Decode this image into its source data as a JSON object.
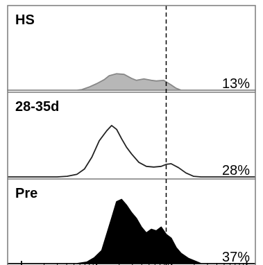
{
  "chart_data": {
    "type": "area",
    "layout": "stacked-histogram-overlay",
    "gate_line": "dashed",
    "x_range": [
      0,
      1
    ],
    "panels": [
      {
        "name": "HS",
        "label": "HS",
        "percent": "13%",
        "fill": "#b7b7b7",
        "stroke": "#888888",
        "x": [
          0.0,
          0.28,
          0.3,
          0.33,
          0.36,
          0.39,
          0.41,
          0.44,
          0.47,
          0.5,
          0.52,
          0.55,
          0.58,
          0.6,
          0.63,
          0.66,
          0.68,
          0.7,
          1.0
        ],
        "y": [
          0,
          0,
          0.01,
          0.05,
          0.1,
          0.16,
          0.22,
          0.25,
          0.24,
          0.18,
          0.15,
          0.17,
          0.15,
          0.14,
          0.15,
          0.08,
          0.03,
          0.0,
          0
        ]
      },
      {
        "name": "28-35d",
        "label": "28-35d",
        "percent": "28%",
        "fill": "none",
        "stroke": "#222222",
        "x": [
          0.0,
          0.2,
          0.24,
          0.28,
          0.31,
          0.34,
          0.37,
          0.4,
          0.42,
          0.44,
          0.46,
          0.48,
          0.5,
          0.53,
          0.56,
          0.59,
          0.62,
          0.64,
          0.66,
          0.69,
          0.72,
          0.75,
          0.78,
          1.0
        ],
        "y": [
          0,
          0,
          0.01,
          0.04,
          0.12,
          0.3,
          0.55,
          0.7,
          0.78,
          0.72,
          0.58,
          0.45,
          0.35,
          0.22,
          0.16,
          0.15,
          0.16,
          0.19,
          0.2,
          0.14,
          0.06,
          0.01,
          0.0,
          0
        ]
      },
      {
        "name": "Pre",
        "label": "Pre",
        "percent": "37%",
        "fill": "#000000",
        "stroke": "#000000",
        "x": [
          0.0,
          0.28,
          0.32,
          0.35,
          0.38,
          0.4,
          0.42,
          0.44,
          0.46,
          0.48,
          0.5,
          0.52,
          0.54,
          0.56,
          0.58,
          0.6,
          0.62,
          0.64,
          0.66,
          0.68,
          0.7,
          0.73,
          0.76,
          0.78,
          1.0
        ],
        "y": [
          0,
          0,
          0.02,
          0.08,
          0.18,
          0.4,
          0.62,
          0.85,
          0.88,
          0.8,
          0.7,
          0.62,
          0.5,
          0.42,
          0.47,
          0.45,
          0.5,
          0.4,
          0.35,
          0.22,
          0.14,
          0.07,
          0.03,
          0.0,
          0
        ]
      }
    ],
    "gate_x": 0.64
  }
}
